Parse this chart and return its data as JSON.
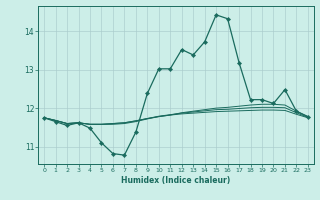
{
  "title": "",
  "xlabel": "Humidex (Indice chaleur)",
  "ylabel": "",
  "background_color": "#cceee8",
  "grid_color": "#aacccc",
  "line_color": "#1a6b5e",
  "xlim": [
    -0.5,
    23.5
  ],
  "ylim": [
    10.55,
    14.65
  ],
  "yticks": [
    11,
    12,
    13,
    14
  ],
  "xticks": [
    0,
    1,
    2,
    3,
    4,
    5,
    6,
    7,
    8,
    9,
    10,
    11,
    12,
    13,
    14,
    15,
    16,
    17,
    18,
    19,
    20,
    21,
    22,
    23
  ],
  "series1_x": [
    0,
    1,
    2,
    3,
    4,
    5,
    6,
    7,
    8,
    9,
    10,
    11,
    12,
    13,
    14,
    15,
    16,
    17,
    18,
    19,
    20,
    21,
    22,
    23
  ],
  "series1_y": [
    11.75,
    11.65,
    11.55,
    11.62,
    11.48,
    11.1,
    10.82,
    10.78,
    11.38,
    12.38,
    13.02,
    13.02,
    13.52,
    13.38,
    13.72,
    14.42,
    14.32,
    13.18,
    12.22,
    12.22,
    12.12,
    12.48,
    11.92,
    11.78
  ],
  "series2_x": [
    0,
    1,
    2,
    3,
    4,
    5,
    6,
    7,
    8,
    9,
    10,
    11,
    12,
    13,
    14,
    15,
    16,
    17,
    18,
    19,
    20,
    21,
    22,
    23
  ],
  "series2_y": [
    11.75,
    11.68,
    11.6,
    11.62,
    11.58,
    11.58,
    11.58,
    11.6,
    11.65,
    11.72,
    11.78,
    11.82,
    11.88,
    11.92,
    11.96,
    12.0,
    12.02,
    12.05,
    12.08,
    12.1,
    12.1,
    12.08,
    11.92,
    11.78
  ],
  "series3_x": [
    0,
    1,
    2,
    3,
    4,
    5,
    6,
    7,
    8,
    9,
    10,
    11,
    12,
    13,
    14,
    15,
    16,
    17,
    18,
    19,
    20,
    21,
    22,
    23
  ],
  "series3_y": [
    11.75,
    11.68,
    11.6,
    11.62,
    11.58,
    11.58,
    11.6,
    11.62,
    11.67,
    11.73,
    11.79,
    11.83,
    11.87,
    11.9,
    11.93,
    11.96,
    11.97,
    11.99,
    12.01,
    12.02,
    12.02,
    12.01,
    11.88,
    11.76
  ],
  "series4_x": [
    0,
    1,
    2,
    3,
    4,
    5,
    6,
    7,
    8,
    9,
    10,
    11,
    12,
    13,
    14,
    15,
    16,
    17,
    18,
    19,
    20,
    21,
    22,
    23
  ],
  "series4_y": [
    11.75,
    11.68,
    11.6,
    11.62,
    11.58,
    11.58,
    11.6,
    11.62,
    11.67,
    11.73,
    11.78,
    11.82,
    11.85,
    11.87,
    11.89,
    11.91,
    11.92,
    11.93,
    11.94,
    11.95,
    11.95,
    11.94,
    11.84,
    11.75
  ]
}
